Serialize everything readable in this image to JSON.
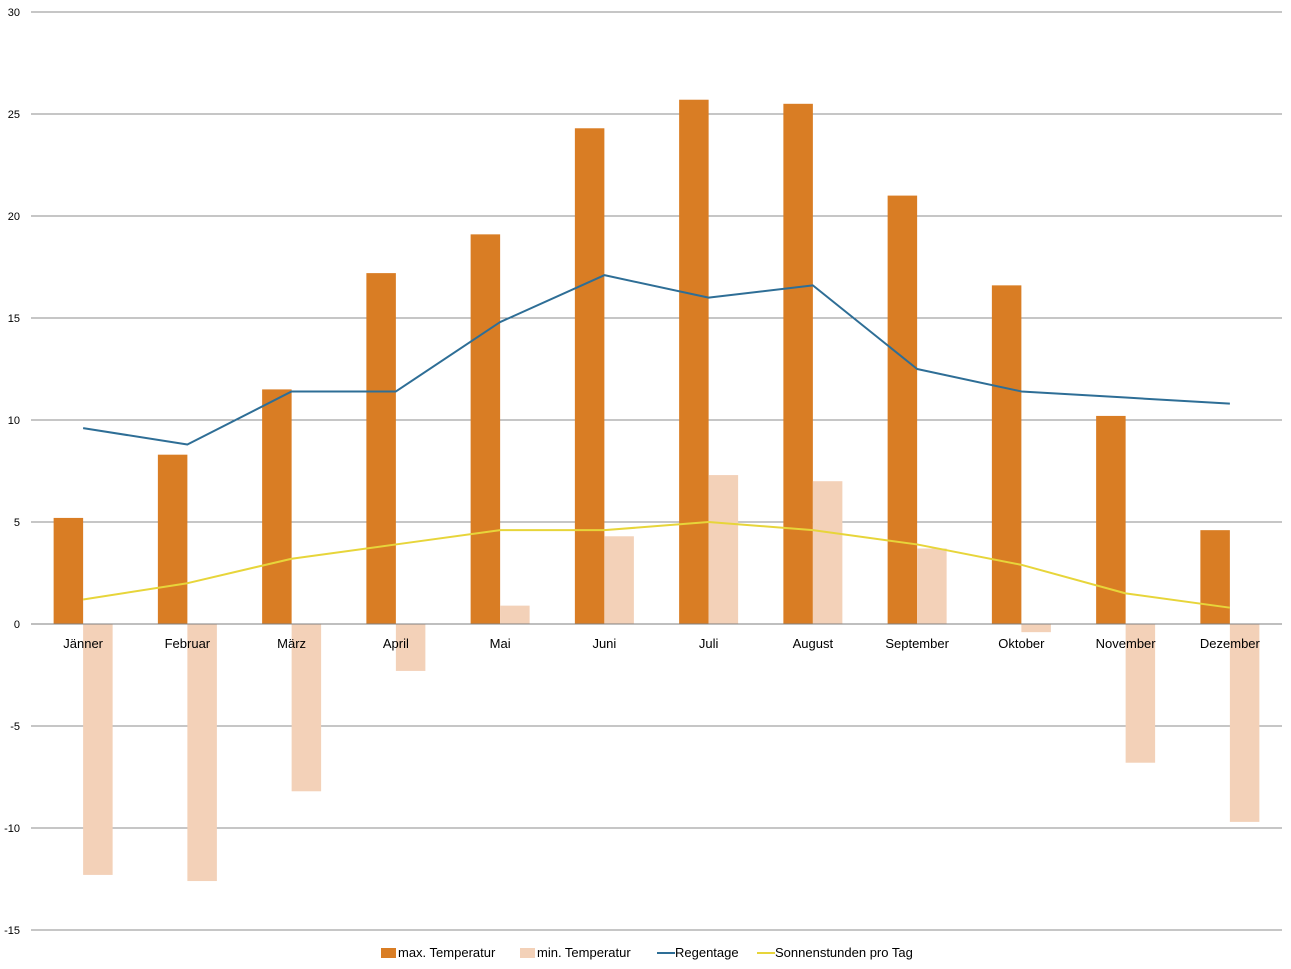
{
  "chart_data": {
    "type": "bar",
    "categories": [
      "Jänner",
      "Februar",
      "März",
      "April",
      "Mai",
      "Juni",
      "Juli",
      "August",
      "September",
      "Oktober",
      "November",
      "Dezember"
    ],
    "series": [
      {
        "name": "max. Temperatur",
        "type": "bar",
        "color": "#D97D24",
        "values": [
          5.2,
          8.3,
          11.5,
          17.2,
          19.1,
          24.3,
          25.7,
          25.5,
          21.0,
          16.6,
          10.2,
          4.6
        ]
      },
      {
        "name": "min. Temperatur",
        "type": "bar",
        "color": "#F3D1B8",
        "values": [
          -12.3,
          -12.6,
          -8.2,
          -2.3,
          0.9,
          4.3,
          7.3,
          7.0,
          3.7,
          -0.4,
          -6.8,
          -9.7
        ]
      },
      {
        "name": "Regentage",
        "type": "line",
        "color": "#2E6E96",
        "values": [
          9.6,
          8.8,
          11.4,
          11.4,
          14.8,
          17.1,
          16.0,
          16.6,
          12.5,
          11.4,
          11.1,
          10.8
        ]
      },
      {
        "name": "Sonnenstunden pro Tag",
        "type": "line",
        "color": "#E7D53A",
        "values": [
          1.2,
          2.0,
          3.2,
          3.9,
          4.6,
          4.6,
          5.0,
          4.6,
          3.9,
          2.9,
          1.5,
          0.8
        ]
      }
    ],
    "yticks": [
      "30",
      "25",
      "20",
      "15",
      "10",
      "5",
      "0",
      "-5",
      "-10",
      "-15"
    ],
    "ylim": [
      -15,
      30
    ],
    "grid": true,
    "legend_position": "bottom"
  }
}
